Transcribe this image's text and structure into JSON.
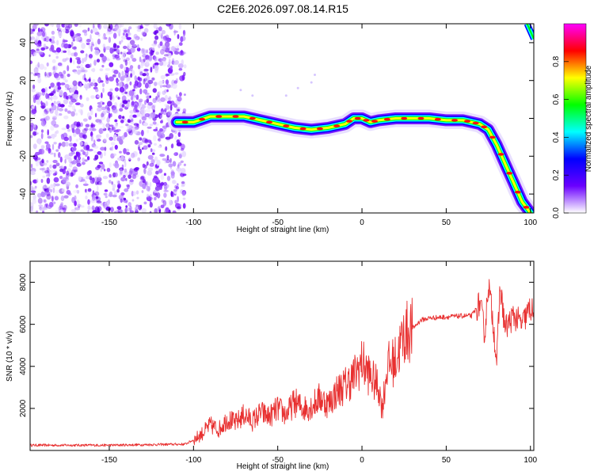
{
  "title": "C2E6.2026.097.08.14.R15",
  "chart_data": [
    {
      "type": "heatmap",
      "xlabel": "Height of straight line (km)",
      "ylabel": "Frequency (Hz)",
      "xlim": [
        -197,
        102
      ],
      "ylim": [
        -50,
        50
      ],
      "xticks": [
        -150,
        -100,
        -50,
        0,
        50,
        100
      ],
      "yticks": [
        -40,
        -20,
        0,
        20,
        40
      ],
      "colorbar": {
        "label": "Normalized spectral amplitude",
        "range": [
          0,
          1
        ],
        "ticks": [
          0.0,
          0.2,
          0.4,
          0.6,
          0.8
        ],
        "colors": [
          "#ffffff",
          "#6a00ff",
          "#0000ff",
          "#00ffff",
          "#00ff00",
          "#ffff00",
          "#ff0000",
          "#ff00ff"
        ]
      },
      "noise_region": {
        "x_from": -197,
        "x_to": -107,
        "freq_from": -50,
        "freq_to": 50
      },
      "ridge": {
        "name": "",
        "x": [
          -110,
          -100,
          -90,
          -80,
          -70,
          -60,
          -50,
          -40,
          -30,
          -20,
          -10,
          -5,
          0,
          5,
          10,
          20,
          30,
          40,
          50,
          60,
          65,
          70,
          75,
          80,
          85,
          90,
          95,
          100
        ],
        "freq": [
          -2,
          -2,
          1,
          1,
          1,
          -1,
          -3,
          -5,
          -6,
          -5,
          -3,
          0,
          0,
          -2,
          -1,
          0,
          0,
          0,
          -1,
          -1,
          -2,
          -3,
          -6,
          -14,
          -24,
          -34,
          -44,
          -50
        ]
      },
      "ridge_branch": {
        "x": [
          98,
          102
        ],
        "freq": [
          50,
          42
        ]
      }
    },
    {
      "type": "line",
      "xlabel": "Height of straight line (km)",
      "ylabel": "SNR (10 * v/v)",
      "xlim": [
        -197,
        102
      ],
      "ylim": [
        0,
        9000
      ],
      "xticks": [
        -150,
        -100,
        -50,
        0,
        50,
        100
      ],
      "yticks": [
        2000,
        4000,
        6000,
        8000
      ],
      "color": "#e83030",
      "series": [
        {
          "name": "",
          "x": [
            -197,
            -150,
            -105,
            -100,
            -95,
            -90,
            -85,
            -80,
            -75,
            -70,
            -65,
            -60,
            -55,
            -50,
            -45,
            -40,
            -35,
            -30,
            -25,
            -20,
            -15,
            -10,
            -5,
            0,
            5,
            10,
            12,
            15,
            20,
            25,
            30,
            35,
            40,
            50,
            60,
            65,
            70,
            73,
            75,
            78,
            80,
            82,
            85,
            90,
            95,
            100,
            102
          ],
          "y": [
            250,
            250,
            300,
            500,
            800,
            1200,
            1000,
            1500,
            1300,
            1700,
            1400,
            1800,
            1600,
            2000,
            1700,
            2300,
            2000,
            2100,
            2500,
            2200,
            2800,
            3100,
            3500,
            4200,
            3500,
            3000,
            2000,
            4000,
            4300,
            5500,
            5800,
            6200,
            6300,
            6350,
            6400,
            6400,
            7000,
            5500,
            8000,
            6000,
            4200,
            7800,
            5800,
            6400,
            6000,
            6800,
            6400
          ]
        }
      ]
    }
  ]
}
